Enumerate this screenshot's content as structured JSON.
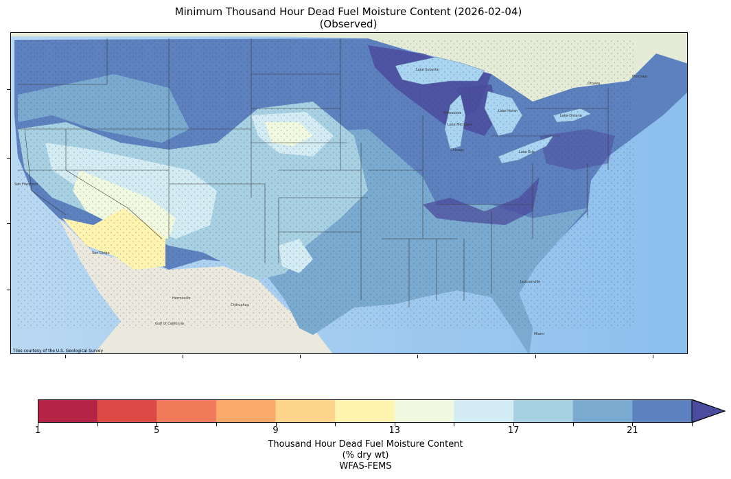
{
  "title": {
    "line1": "Minimum Thousand Hour Dead Fuel Moisture Content (2026-02-04)",
    "line2": "(Observed)"
  },
  "map": {
    "credit": "Tiles courtesy of the U.S. Geological Survey",
    "basemap_labels": [
      "San Francisco",
      "San Diego",
      "Chihuahua",
      "Hermosillo",
      "Gulf of California",
      "Lake Superior",
      "Lake Michigan",
      "Lake Huron",
      "Lake Erie",
      "Lake Ontario",
      "Milwaukee",
      "Chicago",
      "Jacksonville",
      "Miami",
      "Ottawa",
      "Montreal"
    ],
    "colors": {
      "ocean": "#9fc8ef",
      "land": "#ece6d6",
      "great_lakes": "#a9d4f2",
      "boundary": "#3a3a3a"
    }
  },
  "colorbar": {
    "title_line1": "Thousand Hour Dead Fuel Moisture Content",
    "title_line2": "(% dry wt)",
    "title_line3": "WFAS-FEMS",
    "tick_labels": [
      "1",
      "5",
      "9",
      "13",
      "17",
      "21"
    ],
    "bins": [
      {
        "from": 1,
        "to": 3,
        "color": "#b52346"
      },
      {
        "from": 3,
        "to": 5,
        "color": "#dc4a46"
      },
      {
        "from": 5,
        "to": 7,
        "color": "#f07a5a"
      },
      {
        "from": 7,
        "to": 9,
        "color": "#fba96b"
      },
      {
        "from": 9,
        "to": 11,
        "color": "#fed48c"
      },
      {
        "from": 11,
        "to": 13,
        "color": "#fff3b0"
      },
      {
        "from": 13,
        "to": 15,
        "color": "#f0f9e0"
      },
      {
        "from": 15,
        "to": 17,
        "color": "#d3ebf3"
      },
      {
        "from": 17,
        "to": 19,
        "color": "#a8d0e3"
      },
      {
        "from": 19,
        "to": 21,
        "color": "#7baad0"
      },
      {
        "from": 21,
        "to": 23,
        "color": "#5d81bf"
      }
    ],
    "extend_color": "#4b4c9e"
  }
}
